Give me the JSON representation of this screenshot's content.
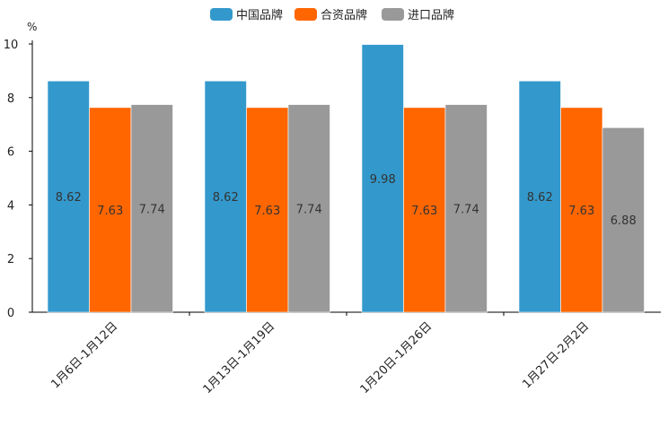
{
  "chart_data": {
    "type": "bar",
    "ylabel": "%",
    "ylim": [
      0,
      10
    ],
    "yticks": [
      0,
      2,
      4,
      6,
      8,
      10
    ],
    "grid": false,
    "legend_position": "top-center",
    "categories": [
      "1月6日-1月12日",
      "1月13日-1月19日",
      "1月20日-1月26日",
      "1月27日-2月2日"
    ],
    "series": [
      {
        "name": "中国品牌",
        "color": "#3399cc",
        "values": [
          8.62,
          8.62,
          9.98,
          8.62
        ]
      },
      {
        "name": "合资品牌",
        "color": "#ff6600",
        "values": [
          7.63,
          7.63,
          7.63,
          7.63
        ]
      },
      {
        "name": "进口品牌",
        "color": "#999999",
        "values": [
          7.74,
          7.74,
          7.74,
          6.88
        ]
      }
    ]
  }
}
